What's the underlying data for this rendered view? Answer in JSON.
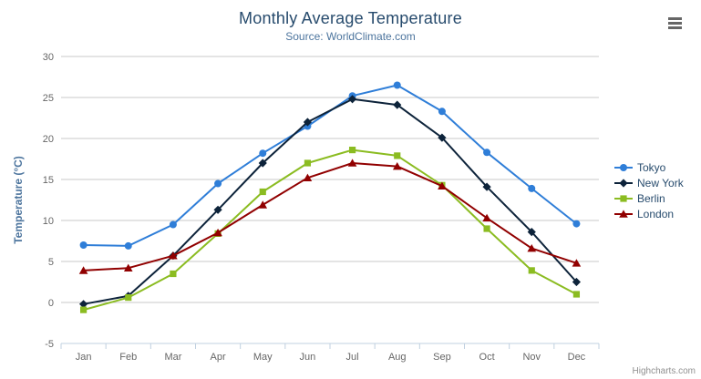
{
  "credits": "Highcharts.com",
  "context_menu": {
    "icon": "hamburger-menu-icon"
  },
  "chart_data": {
    "type": "line",
    "title": "Monthly Average Temperature",
    "subtitle": "Source: WorldClimate.com",
    "xlabel": "",
    "ylabel": "Temperature (°C)",
    "ylim": [
      -5,
      30
    ],
    "y_ticks": [
      -5,
      0,
      5,
      10,
      15,
      20,
      25,
      30
    ],
    "grid": true,
    "legend_position": "right",
    "categories": [
      "Jan",
      "Feb",
      "Mar",
      "Apr",
      "May",
      "Jun",
      "Jul",
      "Aug",
      "Sep",
      "Oct",
      "Nov",
      "Dec"
    ],
    "series": [
      {
        "name": "Tokyo",
        "color": "#2f7ed8",
        "marker": "circle",
        "values": [
          7.0,
          6.9,
          9.5,
          14.5,
          18.2,
          21.5,
          25.2,
          26.5,
          23.3,
          18.3,
          13.9,
          9.6
        ]
      },
      {
        "name": "New York",
        "color": "#0d233a",
        "marker": "diamond",
        "values": [
          -0.2,
          0.8,
          5.7,
          11.3,
          17.0,
          22.0,
          24.8,
          24.1,
          20.1,
          14.1,
          8.6,
          2.5
        ]
      },
      {
        "name": "Berlin",
        "color": "#8bbc21",
        "marker": "square",
        "values": [
          -0.9,
          0.6,
          3.5,
          8.4,
          13.5,
          17.0,
          18.6,
          17.9,
          14.3,
          9.0,
          3.9,
          1.0
        ]
      },
      {
        "name": "London",
        "color": "#910000",
        "marker": "triangle",
        "values": [
          3.9,
          4.2,
          5.7,
          8.5,
          11.9,
          15.2,
          17.0,
          16.6,
          14.2,
          10.3,
          6.6,
          4.8
        ]
      }
    ],
    "axis_colors": {
      "grid_line": "#c8c8c8",
      "axis_line": "#c0d0e0"
    }
  }
}
